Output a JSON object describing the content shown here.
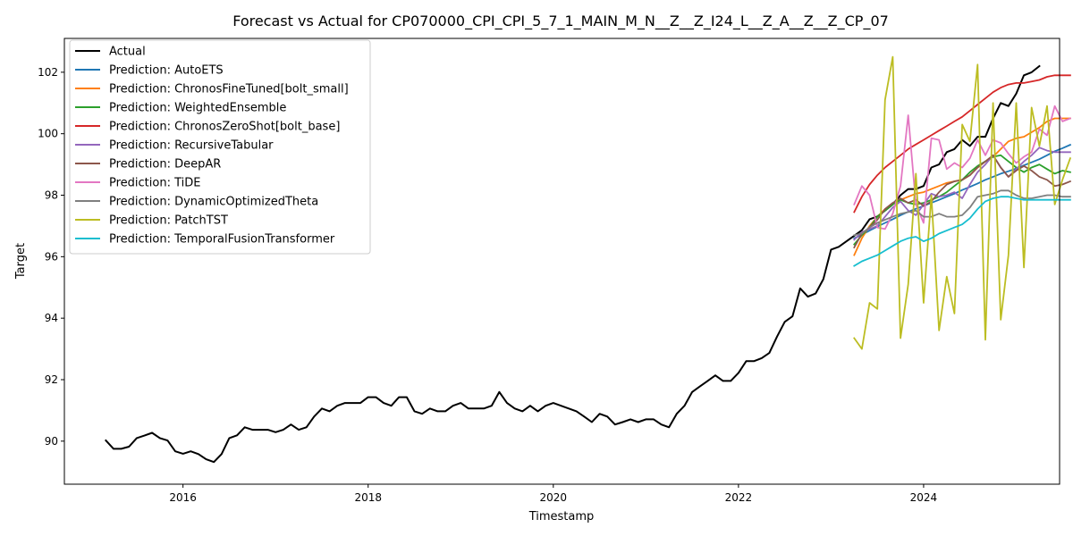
{
  "chart_data": {
    "type": "line",
    "title": "Forecast vs Actual for CP070000_CPI_CPI_5_7_1_MAIN_M_N__Z__Z_I24_L__Z_A__Z__Z_CP_07",
    "xlabel": "Timestamp",
    "ylabel": "Target",
    "xlim": [
      "2014-09-20",
      "2025-06-20"
    ],
    "ylim": [
      88.6,
      103.1
    ],
    "x_ticks": [
      "2016",
      "2018",
      "2020",
      "2022",
      "2024"
    ],
    "y_ticks": [
      90,
      92,
      94,
      96,
      98,
      100,
      102
    ],
    "grid": false,
    "legend_position": "upper-left",
    "series": [
      {
        "name": "Actual",
        "color": "#000000",
        "start": "2015-03",
        "values": [
          90.02,
          89.75,
          89.75,
          89.82,
          90.1,
          90.18,
          90.27,
          90.1,
          90.02,
          89.67,
          89.59,
          89.67,
          89.58,
          89.41,
          89.32,
          89.58,
          90.1,
          90.19,
          90.45,
          90.37,
          90.37,
          90.37,
          90.29,
          90.37,
          90.54,
          90.37,
          90.45,
          90.8,
          91.06,
          90.97,
          91.15,
          91.24,
          91.24,
          91.24,
          91.43,
          91.43,
          91.24,
          91.15,
          91.43,
          91.43,
          90.97,
          90.89,
          91.06,
          90.97,
          90.97,
          91.15,
          91.24,
          91.06,
          91.06,
          91.06,
          91.15,
          91.6,
          91.24,
          91.06,
          90.97,
          91.15,
          90.97,
          91.15,
          91.24,
          91.15,
          91.06,
          90.97,
          90.8,
          90.62,
          90.89,
          90.8,
          90.54,
          90.62,
          90.71,
          90.62,
          90.71,
          90.71,
          90.54,
          90.45,
          90.89,
          91.15,
          91.6,
          91.78,
          91.96,
          92.14,
          91.96,
          91.96,
          92.22,
          92.6,
          92.6,
          92.7,
          92.87,
          93.4,
          93.88,
          94.06,
          94.97,
          94.7,
          94.8,
          95.27,
          96.23,
          96.32,
          96.5,
          96.68,
          96.86,
          97.22,
          97.31,
          97.5,
          97.7,
          98.0,
          98.2,
          98.2,
          98.3,
          98.9,
          99.0,
          99.4,
          99.5,
          99.8,
          99.6,
          99.9,
          99.9,
          100.5,
          101.0,
          100.9,
          101.3,
          101.9,
          102.0,
          102.2
        ]
      },
      {
        "name": "Prediction: AutoETS",
        "color": "#1f77b4",
        "start": "2023-04",
        "values": [
          96.6,
          96.71,
          96.85,
          96.98,
          97.1,
          97.22,
          97.35,
          97.46,
          97.56,
          97.65,
          97.75,
          97.85,
          97.95,
          98.05,
          98.17,
          98.27,
          98.38,
          98.5,
          98.6,
          98.7,
          98.78,
          98.87,
          98.97,
          99.07,
          99.17,
          99.3,
          99.43,
          99.53,
          99.64
        ]
      },
      {
        "name": "Prediction: ChronosFineTuned[bolt_small]",
        "color": "#ff7f0e",
        "start": "2023-04",
        "values": [
          96.05,
          96.6,
          97.0,
          97.3,
          97.55,
          97.7,
          97.85,
          97.95,
          98.05,
          98.1,
          98.2,
          98.3,
          98.4,
          98.45,
          98.5,
          98.65,
          98.9,
          99.1,
          99.25,
          99.5,
          99.75,
          99.85,
          99.9,
          100.05,
          100.2,
          100.4,
          100.5,
          100.5,
          100.5
        ]
      },
      {
        "name": "Prediction: WeightedEnsemble",
        "color": "#2ca02c",
        "start": "2023-04",
        "values": [
          96.4,
          96.7,
          96.95,
          97.3,
          97.5,
          97.7,
          97.85,
          97.75,
          97.7,
          97.75,
          97.85,
          97.95,
          98.1,
          98.3,
          98.5,
          98.75,
          98.95,
          99.1,
          99.25,
          99.3,
          99.1,
          98.9,
          98.75,
          98.9,
          99.0,
          98.85,
          98.7,
          98.8,
          98.75
        ]
      },
      {
        "name": "Prediction: ChronosZeroShot[bolt_base]",
        "color": "#d62728",
        "start": "2023-04",
        "values": [
          97.45,
          97.95,
          98.35,
          98.65,
          98.9,
          99.1,
          99.3,
          99.5,
          99.65,
          99.8,
          99.95,
          100.1,
          100.25,
          100.4,
          100.55,
          100.75,
          100.95,
          101.15,
          101.35,
          101.5,
          101.6,
          101.65,
          101.65,
          101.7,
          101.75,
          101.85,
          101.9,
          101.9,
          101.9
        ]
      },
      {
        "name": "Prediction: RecursiveTabular",
        "color": "#9467bd",
        "start": "2023-04",
        "values": [
          96.55,
          96.8,
          96.9,
          97.0,
          97.3,
          97.6,
          97.8,
          97.5,
          97.35,
          97.7,
          98.05,
          97.95,
          98.0,
          98.1,
          97.9,
          98.35,
          98.75,
          99.0,
          99.3,
          98.9,
          98.6,
          98.85,
          99.1,
          99.3,
          99.55,
          99.45,
          99.4,
          99.4,
          99.4
        ]
      },
      {
        "name": "Prediction: DeepAR",
        "color": "#8c564b",
        "start": "2023-04",
        "values": [
          96.3,
          96.75,
          96.95,
          97.2,
          97.55,
          97.75,
          97.9,
          97.75,
          97.85,
          97.65,
          97.8,
          98.1,
          98.35,
          98.45,
          98.5,
          98.65,
          98.9,
          99.1,
          99.3,
          98.9,
          98.6,
          98.8,
          98.95,
          98.8,
          98.6,
          98.5,
          98.3,
          98.35,
          98.45
        ]
      },
      {
        "name": "Prediction: TiDE",
        "color": "#e377c2",
        "start": "2023-04",
        "values": [
          97.7,
          98.3,
          98.0,
          96.95,
          96.9,
          97.4,
          98.3,
          100.6,
          97.7,
          97.1,
          99.85,
          99.8,
          98.85,
          99.05,
          98.9,
          99.2,
          99.8,
          99.3,
          99.8,
          99.7,
          99.35,
          99.05,
          99.25,
          99.4,
          100.15,
          99.95,
          100.9,
          100.4,
          100.5
        ]
      },
      {
        "name": "Prediction: DynamicOptimizedTheta",
        "color": "#7f7f7f",
        "start": "2023-04",
        "values": [
          96.7,
          96.75,
          96.95,
          97.1,
          97.2,
          97.3,
          97.4,
          97.45,
          97.5,
          97.3,
          97.3,
          97.4,
          97.3,
          97.3,
          97.35,
          97.6,
          97.95,
          98.0,
          98.05,
          98.15,
          98.15,
          98.0,
          97.9,
          97.9,
          97.95,
          98.0,
          98.0,
          97.95,
          97.95
        ]
      },
      {
        "name": "Prediction: PatchTST",
        "color": "#bcbd22",
        "start": "2023-04",
        "values": [
          93.35,
          93.0,
          94.5,
          94.3,
          101.1,
          102.5,
          93.35,
          95.1,
          98.7,
          94.5,
          98.0,
          93.6,
          95.35,
          94.15,
          100.3,
          99.75,
          102.25,
          93.3,
          101.0,
          93.95,
          96.05,
          101.0,
          95.65,
          100.85,
          99.6,
          100.9,
          97.7,
          98.5,
          99.2
        ]
      },
      {
        "name": "Prediction: TemporalFusionTransformer",
        "color": "#17becf",
        "start": "2023-04",
        "values": [
          95.7,
          95.85,
          95.95,
          96.05,
          96.2,
          96.35,
          96.5,
          96.6,
          96.65,
          96.5,
          96.6,
          96.75,
          96.85,
          96.95,
          97.05,
          97.25,
          97.55,
          97.8,
          97.9,
          97.95,
          97.95,
          97.9,
          97.85,
          97.85,
          97.85,
          97.85,
          97.85,
          97.85,
          97.85
        ]
      }
    ]
  }
}
